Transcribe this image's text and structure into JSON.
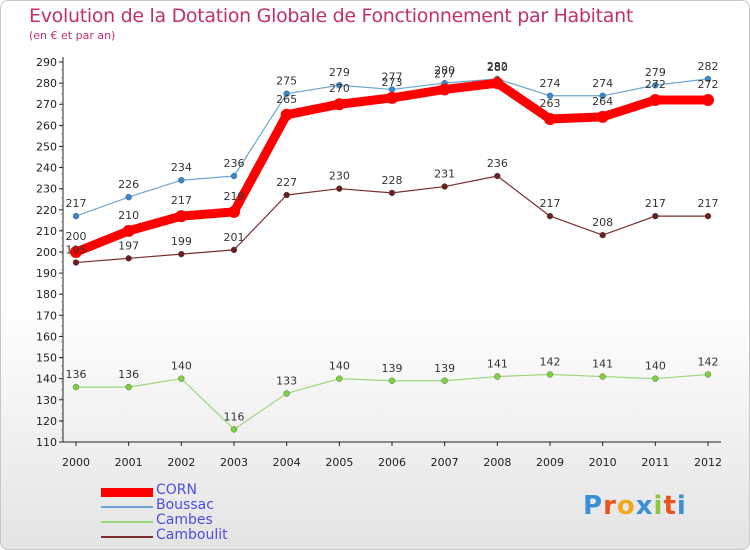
{
  "title": "Evolution de la Dotation Globale de Fonctionnement par Habitant",
  "subtitle": "(en € et par an)",
  "logo": "Proxiti",
  "chart_data": {
    "type": "line",
    "x": [
      2000,
      2001,
      2002,
      2003,
      2004,
      2005,
      2006,
      2007,
      2008,
      2009,
      2010,
      2011,
      2012
    ],
    "ylim": [
      110,
      290
    ],
    "ytick_step": 10,
    "grid": false,
    "legend_position": "bottom-left",
    "series": [
      {
        "name": "CORN",
        "color": "#ff0000",
        "values": [
          200,
          210,
          217,
          219,
          265,
          270,
          273,
          277,
          280,
          263,
          264,
          272,
          272
        ]
      },
      {
        "name": "Boussac",
        "color": "#6ea6d6",
        "values": [
          217,
          226,
          234,
          236,
          275,
          279,
          277,
          280,
          282,
          274,
          274,
          279,
          282
        ]
      },
      {
        "name": "Cambes",
        "color": "#9cd67a",
        "values": [
          136,
          136,
          140,
          116,
          133,
          140,
          139,
          139,
          141,
          142,
          141,
          140,
          142
        ]
      },
      {
        "name": "Camboulit",
        "color": "#7a2e2e",
        "values": [
          195,
          197,
          199,
          201,
          227,
          230,
          228,
          231,
          236,
          217,
          208,
          217,
          217
        ]
      }
    ]
  }
}
